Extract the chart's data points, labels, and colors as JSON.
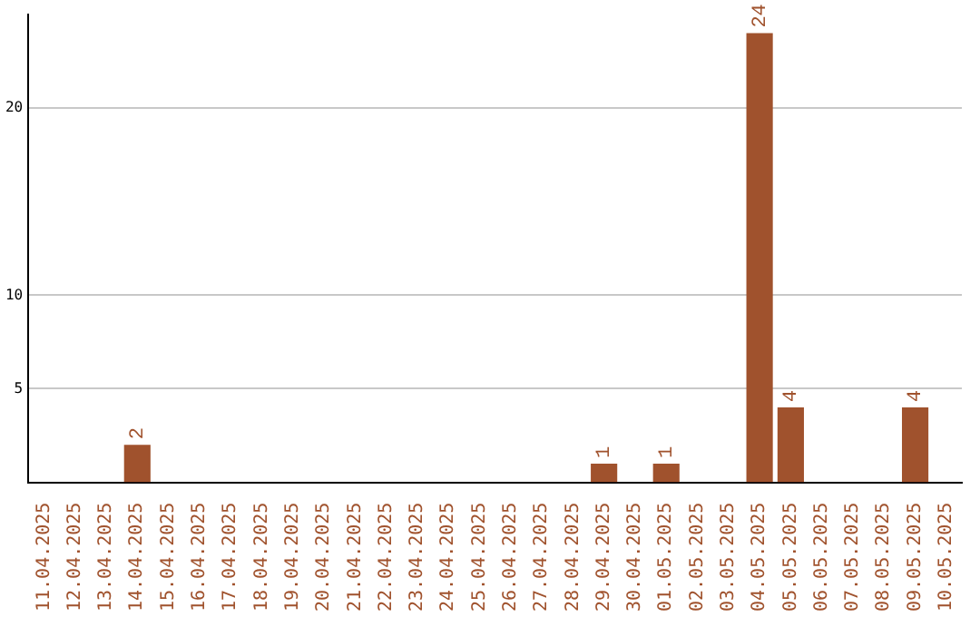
{
  "chart_data": {
    "type": "bar",
    "categories": [
      "11.04.2025",
      "12.04.2025",
      "13.04.2025",
      "14.04.2025",
      "15.04.2025",
      "16.04.2025",
      "17.04.2025",
      "18.04.2025",
      "19.04.2025",
      "20.04.2025",
      "21.04.2025",
      "22.04.2025",
      "23.04.2025",
      "24.04.2025",
      "25.04.2025",
      "26.04.2025",
      "27.04.2025",
      "28.04.2025",
      "29.04.2025",
      "30.04.2025",
      "01.05.2025",
      "02.05.2025",
      "03.05.2025",
      "04.05.2025",
      "05.05.2025",
      "06.05.2025",
      "07.05.2025",
      "08.05.2025",
      "09.05.2025",
      "10.05.2025"
    ],
    "values": [
      0,
      0,
      0,
      2,
      0,
      0,
      0,
      0,
      0,
      0,
      0,
      0,
      0,
      0,
      0,
      0,
      0,
      0,
      1,
      0,
      1,
      0,
      0,
      24,
      4,
      0,
      0,
      0,
      4,
      0
    ],
    "value_labels": [
      null,
      null,
      null,
      "2",
      null,
      null,
      null,
      null,
      null,
      null,
      null,
      null,
      null,
      null,
      null,
      null,
      null,
      null,
      "1",
      null,
      "1",
      null,
      null,
      "24",
      "4",
      null,
      null,
      null,
      "4",
      null
    ],
    "color": "#a0522d",
    "ylim": [
      0,
      25
    ],
    "yticks": [
      5,
      10,
      20
    ],
    "grid": "y"
  }
}
